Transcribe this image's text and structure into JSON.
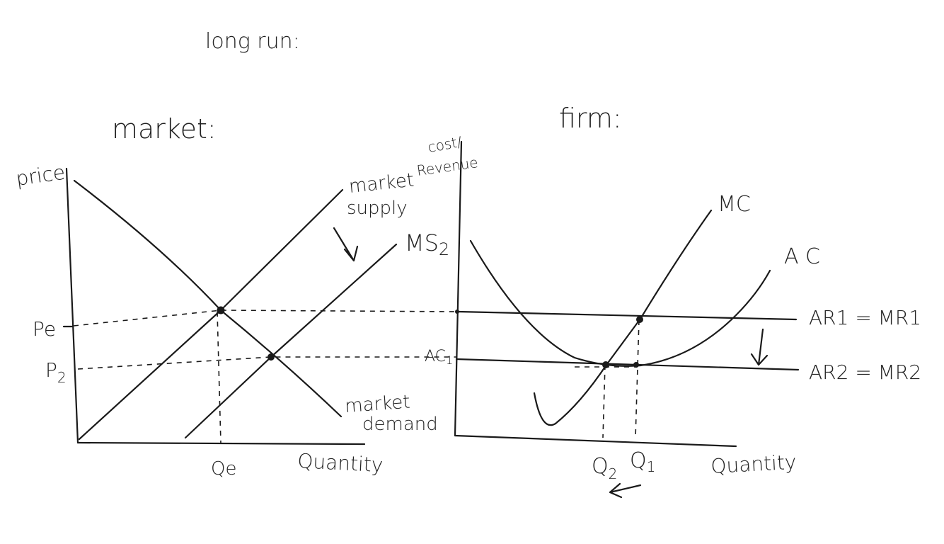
{
  "title": "long run:",
  "market": {
    "heading": "market:",
    "y_axis_label": "price",
    "x_axis_label": "Quantity",
    "supply_label_1": "market",
    "supply_label_2": "supply",
    "supply2_label": "MS",
    "supply2_subscript": "2",
    "demand_label_1": "market",
    "demand_label_2": "demand",
    "price_pe": "Pe",
    "price_p2": "P",
    "price_p2_subscript": "2",
    "qty_qe": "Qe"
  },
  "firm": {
    "heading": "firm:",
    "y_axis_label_1": "cost/",
    "y_axis_label_2": "Revenue",
    "x_axis_label": "Quantity",
    "mc_label": "MC",
    "ac_label": "A C",
    "ar1_label": "AR1 = MR1",
    "ar2_label": "AR2 = MR2",
    "ac1_label": "AC",
    "ac1_subscript": "1",
    "q1_label": "Q",
    "q1_subscript": "1",
    "q2_label": "Q",
    "q2_subscript": "2"
  }
}
